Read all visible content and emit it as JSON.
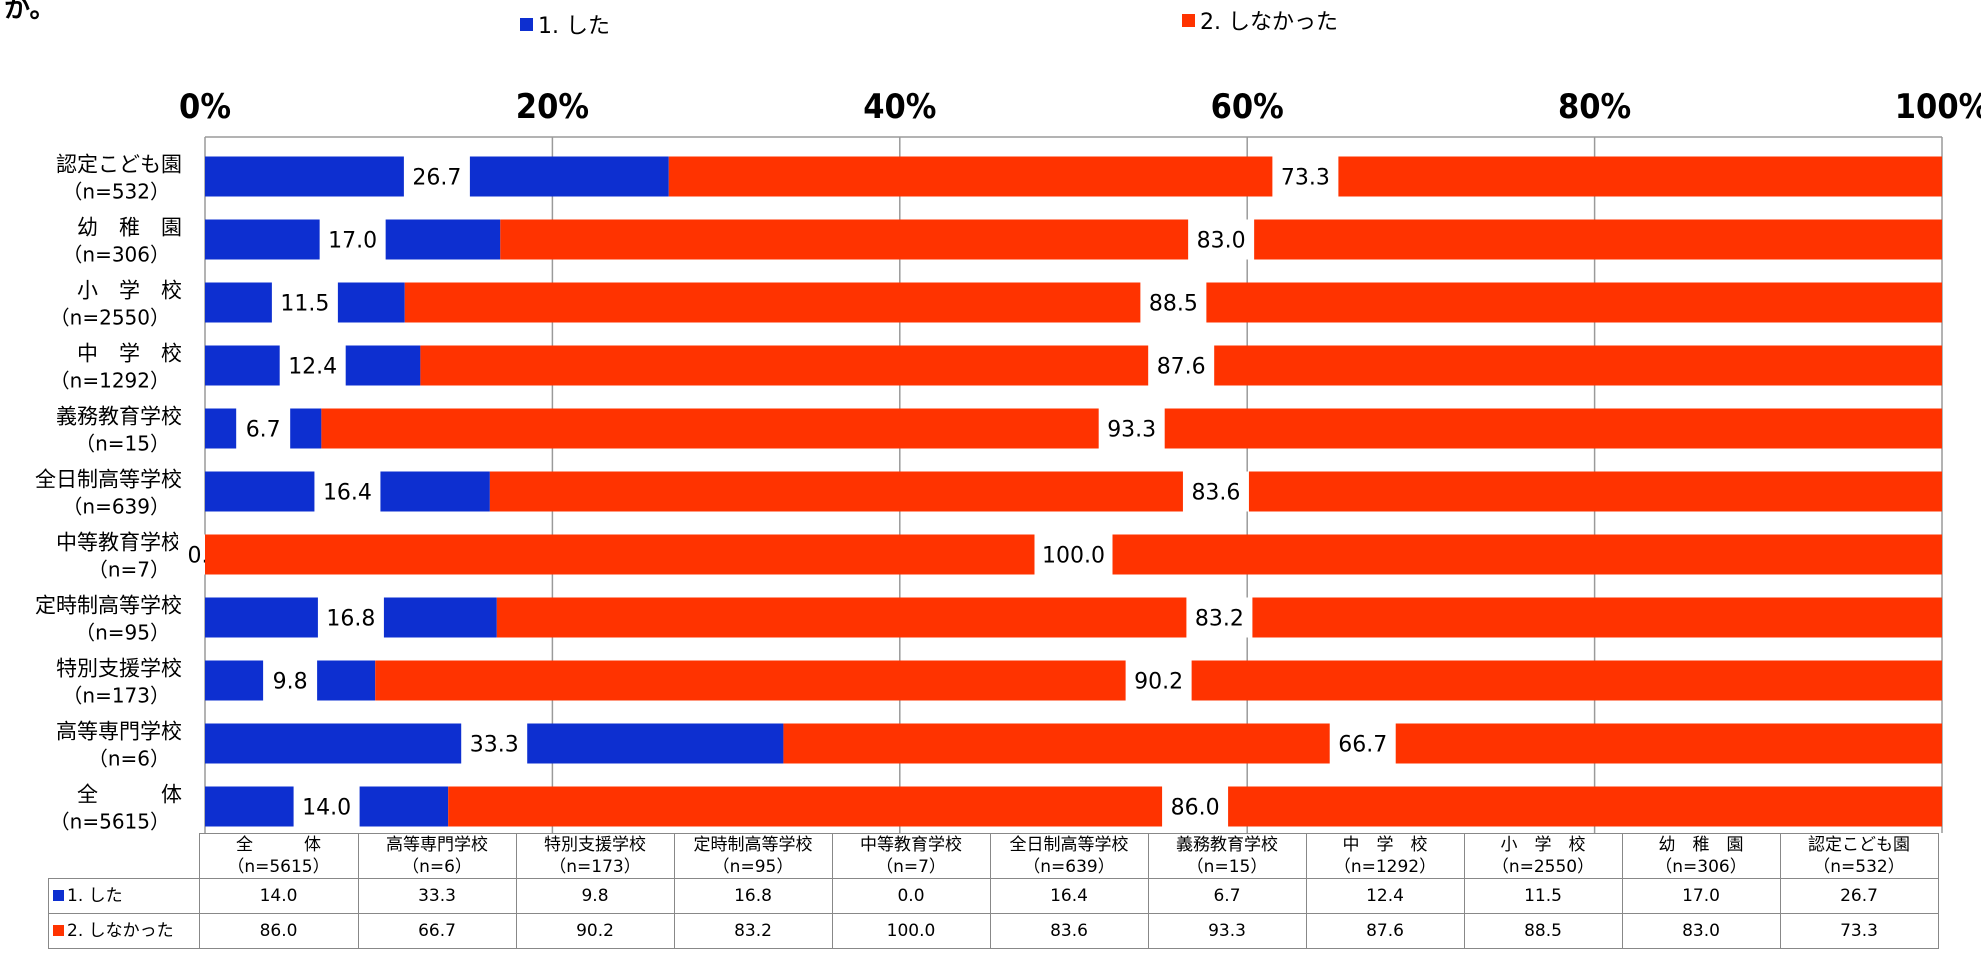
{
  "title_fragment": "か。",
  "legend": [
    {
      "label": "1. した",
      "color": "#0d2fd0"
    },
    {
      "label": "2. しなかった",
      "color": "#ff3300"
    }
  ],
  "chart_data": {
    "type": "bar",
    "stacked": true,
    "orientation": "horizontal",
    "categories": [
      {
        "name": "認定こども園",
        "n": "（n=532）"
      },
      {
        "name": "幼　稚　園",
        "n": "（n=306）"
      },
      {
        "name": "小　学　校",
        "n": "（n=2550）"
      },
      {
        "name": "中　学　校",
        "n": "（n=1292）"
      },
      {
        "name": "義務教育学校",
        "n": "（n=15）"
      },
      {
        "name": "全日制高等学校",
        "n": "（n=639）"
      },
      {
        "name": "中等教育学校",
        "n": "（n=7）"
      },
      {
        "name": "定時制高等学校",
        "n": "（n=95）"
      },
      {
        "name": "特別支援学校",
        "n": "（n=173）"
      },
      {
        "name": "高等専門学校",
        "n": "（n=6）"
      },
      {
        "name": "全　　　体",
        "n": "（n=5615）"
      }
    ],
    "series": [
      {
        "name": "1. した",
        "values": [
          26.7,
          17.0,
          11.5,
          12.4,
          6.7,
          16.4,
          0.0,
          16.8,
          9.8,
          33.3,
          14.0
        ],
        "labels": [
          "26.7",
          "17.0",
          "11.5",
          "12.4",
          "6.7",
          "16.4",
          "0.0",
          "16.8",
          "9.8",
          "33.3",
          "14.0"
        ]
      },
      {
        "name": "2. しなかった",
        "values": [
          73.3,
          83.0,
          88.5,
          87.6,
          93.3,
          83.6,
          100.0,
          83.2,
          90.2,
          66.7,
          86.0
        ],
        "labels": [
          "73.3",
          "83.0",
          "88.5",
          "87.6",
          "93.3",
          "83.6",
          "100.0",
          "83.2",
          "90.2",
          "66.7",
          "86.0"
        ]
      }
    ],
    "xlim": [
      0,
      100
    ],
    "x_ticks": [
      "0%",
      "20%",
      "40%",
      "60%",
      "80%",
      "100%"
    ],
    "grid": true
  },
  "table": {
    "columns": [
      {
        "name": "全　　　体",
        "n": "（n=5615）"
      },
      {
        "name": "高等専門学校",
        "n": "（n=6）"
      },
      {
        "name": "特別支援学校",
        "n": "（n=173）"
      },
      {
        "name": "定時制高等学校",
        "n": "（n=95）"
      },
      {
        "name": "中等教育学校",
        "n": "（n=7）"
      },
      {
        "name": "全日制高等学校",
        "n": "（n=639）"
      },
      {
        "name": "義務教育学校",
        "n": "（n=15）"
      },
      {
        "name": "中　学　校",
        "n": "（n=1292）"
      },
      {
        "name": "小　学　校",
        "n": "（n=2550）"
      },
      {
        "name": "幼　稚　園",
        "n": "（n=306）"
      },
      {
        "name": "認定こども園",
        "n": "（n=532）"
      }
    ],
    "rows": [
      {
        "label": "1. した",
        "color": "#0d2fd0",
        "cells": [
          "14.0",
          "33.3",
          "9.8",
          "16.8",
          "0.0",
          "16.4",
          "6.7",
          "12.4",
          "11.5",
          "17.0",
          "26.7"
        ]
      },
      {
        "label": "2. しなかった",
        "color": "#ff3300",
        "cells": [
          "86.0",
          "66.7",
          "90.2",
          "83.2",
          "100.0",
          "83.6",
          "93.3",
          "87.6",
          "88.5",
          "83.0",
          "73.3"
        ]
      }
    ]
  }
}
